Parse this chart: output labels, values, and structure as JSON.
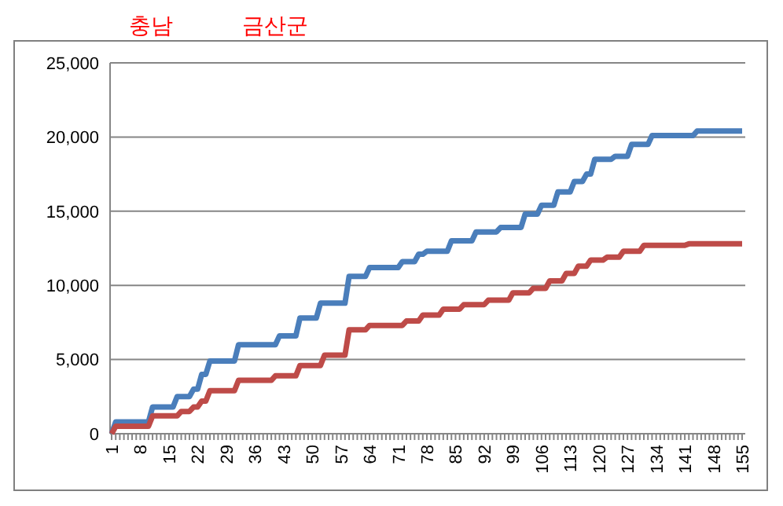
{
  "chart_data": {
    "type": "line",
    "title": "충남",
    "subtitle": "금산군",
    "categories": [
      "1",
      null,
      null,
      null,
      null,
      null,
      null,
      "8",
      null,
      null,
      null,
      null,
      null,
      null,
      "15",
      null,
      null,
      null,
      null,
      null,
      null,
      "22",
      null,
      null,
      null,
      null,
      null,
      null,
      "29",
      null,
      null,
      null,
      null,
      null,
      null,
      "36",
      null,
      null,
      null,
      null,
      null,
      null,
      "43",
      null,
      null,
      null,
      null,
      null,
      null,
      "50",
      null,
      null,
      null,
      null,
      null,
      null,
      "57",
      null,
      null,
      null,
      null,
      null,
      null,
      "64",
      null,
      null,
      null,
      null,
      null,
      null,
      "71",
      null,
      null,
      null,
      null,
      null,
      null,
      "78",
      null,
      null,
      null,
      null,
      null,
      null,
      "85",
      null,
      null,
      null,
      null,
      null,
      null,
      "92",
      null,
      null,
      null,
      null,
      null,
      null,
      "99",
      null,
      null,
      null,
      null,
      null,
      null,
      "106",
      null,
      null,
      null,
      null,
      null,
      null,
      "113",
      null,
      null,
      null,
      null,
      null,
      null,
      "120",
      null,
      null,
      null,
      null,
      null,
      null,
      "127",
      null,
      null,
      null,
      null,
      null,
      null,
      "134",
      null,
      null,
      null,
      null,
      null,
      null,
      "141",
      null,
      null,
      null,
      null,
      null,
      null,
      "148",
      null,
      null,
      null,
      null,
      null,
      null,
      "155"
    ],
    "series": [
      {
        "color": "#4a7ebb",
        "values": [
          0,
          800,
          800,
          800,
          800,
          800,
          800,
          800,
          800,
          800,
          1800,
          1800,
          1800,
          1800,
          1800,
          1800,
          2500,
          2500,
          2500,
          2500,
          3000,
          3000,
          4000,
          4000,
          4900,
          4900,
          4900,
          4900,
          4900,
          4900,
          4900,
          6000,
          6000,
          6000,
          6000,
          6000,
          6000,
          6000,
          6000,
          6000,
          6000,
          6600,
          6600,
          6600,
          6600,
          6600,
          7800,
          7800,
          7800,
          7800,
          7800,
          8800,
          8800,
          8800,
          8800,
          8800,
          8800,
          8800,
          10600,
          10600,
          10600,
          10600,
          10600,
          11200,
          11200,
          11200,
          11200,
          11200,
          11200,
          11200,
          11200,
          11600,
          11600,
          11600,
          11600,
          12100,
          12100,
          12300,
          12300,
          12300,
          12300,
          12300,
          12300,
          13000,
          13000,
          13000,
          13000,
          13000,
          13000,
          13600,
          13600,
          13600,
          13600,
          13600,
          13600,
          13900,
          13900,
          13900,
          13900,
          13900,
          13900,
          14800,
          14800,
          14800,
          14800,
          15400,
          15400,
          15400,
          15400,
          16300,
          16300,
          16300,
          16300,
          17000,
          17000,
          17000,
          17500,
          17500,
          18500,
          18500,
          18500,
          18500,
          18500,
          18700,
          18700,
          18700,
          18700,
          19500,
          19500,
          19500,
          19500,
          19500,
          20100,
          20100,
          20100,
          20100,
          20100,
          20100,
          20100,
          20100,
          20100,
          20100,
          20100,
          20400,
          20400,
          20400,
          20400,
          20400,
          20400,
          20400,
          20400,
          20400,
          20400,
          20400,
          20400
        ]
      },
      {
        "color": "#be4b48",
        "values": [
          0,
          500,
          500,
          500,
          500,
          500,
          500,
          500,
          500,
          500,
          1200,
          1200,
          1200,
          1200,
          1200,
          1200,
          1200,
          1500,
          1500,
          1500,
          1800,
          1800,
          2200,
          2200,
          2900,
          2900,
          2900,
          2900,
          2900,
          2900,
          2900,
          3600,
          3600,
          3600,
          3600,
          3600,
          3600,
          3600,
          3600,
          3600,
          3900,
          3900,
          3900,
          3900,
          3900,
          3900,
          4600,
          4600,
          4600,
          4600,
          4600,
          4600,
          5300,
          5300,
          5300,
          5300,
          5300,
          5300,
          7000,
          7000,
          7000,
          7000,
          7000,
          7300,
          7300,
          7300,
          7300,
          7300,
          7300,
          7300,
          7300,
          7300,
          7600,
          7600,
          7600,
          7600,
          8000,
          8000,
          8000,
          8000,
          8000,
          8400,
          8400,
          8400,
          8400,
          8400,
          8700,
          8700,
          8700,
          8700,
          8700,
          8700,
          9000,
          9000,
          9000,
          9000,
          9000,
          9000,
          9500,
          9500,
          9500,
          9500,
          9500,
          9800,
          9800,
          9800,
          9800,
          10300,
          10300,
          10300,
          10300,
          10800,
          10800,
          10800,
          11300,
          11300,
          11300,
          11700,
          11700,
          11700,
          11700,
          11900,
          11900,
          11900,
          11900,
          12300,
          12300,
          12300,
          12300,
          12300,
          12700,
          12700,
          12700,
          12700,
          12700,
          12700,
          12700,
          12700,
          12700,
          12700,
          12700,
          12800,
          12800,
          12800,
          12800,
          12800,
          12800,
          12800,
          12800,
          12800,
          12800,
          12800,
          12800,
          12800,
          12800
        ]
      }
    ],
    "ylim": [
      0,
      25000
    ],
    "yticks": [
      0,
      {
        "value": 5000,
        "label": "5,000"
      },
      {
        "value": 10000,
        "label": "10,000"
      },
      {
        "value": 15000,
        "label": "15,000"
      },
      {
        "value": 20000,
        "label": "20,000"
      },
      {
        "value": 25000,
        "label": "25,000"
      }
    ],
    "grid": "y",
    "marker": "none",
    "line_style": "solid"
  }
}
